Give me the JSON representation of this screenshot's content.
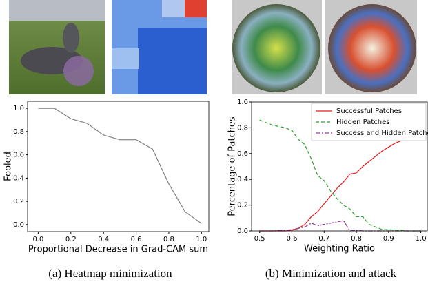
{
  "chart_data": [
    {
      "type": "line",
      "caption": "(a) Heatmap minimization",
      "xlabel": "Proportional Decrease in Grad-CAM sum",
      "ylabel": "Fooled",
      "x": [
        0.0,
        0.1,
        0.2,
        0.3,
        0.4,
        0.5,
        0.6,
        0.7,
        0.8,
        0.9,
        1.0
      ],
      "series": [
        {
          "color": "#808080",
          "style": "solid",
          "values": [
            1.0,
            1.0,
            0.91,
            0.87,
            0.77,
            0.73,
            0.73,
            0.65,
            0.35,
            0.11,
            0.01
          ]
        }
      ],
      "xlim": [
        -0.065,
        1.045
      ],
      "ylim": [
        -0.06,
        1.06
      ],
      "xticks": [
        {
          "value": 0,
          "label": "0.0"
        },
        0.2,
        0.4,
        0.6,
        0.8,
        {
          "value": 1,
          "label": "1.0"
        }
      ],
      "yticks": [
        {
          "value": 0,
          "label": "0.0"
        },
        0.2,
        0.4,
        0.6,
        0.8,
        {
          "value": 1,
          "label": "1.0"
        }
      ]
    },
    {
      "type": "line",
      "caption": "(b) Minimization and attack",
      "xlabel": "Weighting Ratio",
      "ylabel": "Percentage of Patches",
      "x": [
        0.5,
        0.52,
        0.54,
        0.56,
        0.58,
        0.6,
        0.62,
        0.64,
        0.66,
        0.68,
        0.7,
        0.72,
        0.74,
        0.76,
        0.78,
        0.8,
        0.82,
        0.84,
        0.86,
        0.88,
        0.9,
        0.92,
        0.94,
        0.96,
        0.98,
        1.0
      ],
      "series": [
        {
          "name": "Successful Patches",
          "color": "#e41a1c",
          "style": "solid",
          "values": [
            0,
            0,
            0,
            0,
            0,
            0.005,
            0.02,
            0.05,
            0.11,
            0.15,
            0.21,
            0.27,
            0.33,
            0.38,
            0.44,
            0.45,
            0.5,
            0.54,
            0.58,
            0.62,
            0.65,
            0.68,
            0.7,
            0.71,
            0.72,
            0.73
          ]
        },
        {
          "name": "Hidden Patches",
          "color": "#2ca02c",
          "style": "dashed",
          "values": [
            0.86,
            0.84,
            0.82,
            0.81,
            0.8,
            0.78,
            0.71,
            0.67,
            0.56,
            0.43,
            0.39,
            0.31,
            0.25,
            0.2,
            0.17,
            0.11,
            0.11,
            0.05,
            0.03,
            0.01,
            0.01,
            0.005,
            0.005,
            0,
            0,
            0
          ]
        },
        {
          "name": "Success and Hidden Patches",
          "color": "#8b3a8b",
          "style": "dashdot",
          "values": [
            0,
            0,
            0,
            0.005,
            0.005,
            0.01,
            0.02,
            0.03,
            0.06,
            0.04,
            0.05,
            0.06,
            0.07,
            0.08,
            0,
            0.005,
            0,
            0,
            0,
            0,
            0,
            0,
            0,
            0,
            0,
            0
          ]
        }
      ],
      "legend": "upper right",
      "xlim": [
        0.475,
        1.02
      ],
      "ylim": [
        0,
        1
      ],
      "xticks": [
        0.5,
        0.6,
        0.7,
        0.8,
        0.9,
        {
          "value": 1,
          "label": "1.0"
        }
      ],
      "yticks": [
        {
          "value": 0,
          "label": "0.0"
        },
        0.2,
        0.4,
        0.6,
        0.8,
        {
          "value": 1,
          "label": "1.0"
        }
      ]
    }
  ]
}
